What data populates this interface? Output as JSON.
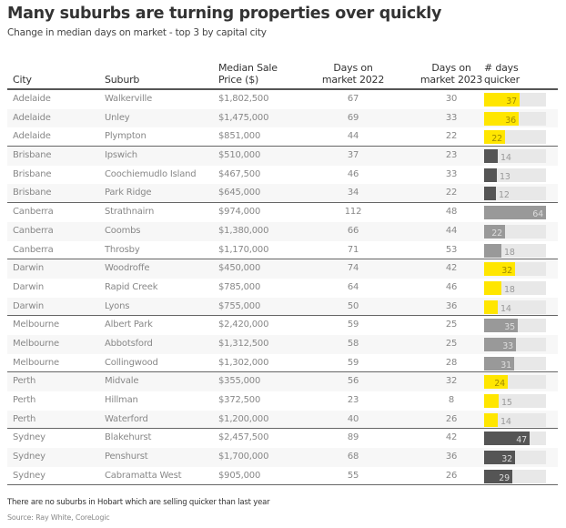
{
  "title": "Many suburbs are turning properties over quickly",
  "subtitle": "Change in median days on market - top 3 by capital city",
  "note": "There are no suburbs in Hobart which are selling quicker than last year",
  "source": "Source: Ray White, CoreLogic",
  "colors": {
    "highlight": "#ffe600",
    "dark": "#555555",
    "medium": "#999999",
    "track": "#e8e8e8"
  },
  "chart_data": {
    "type": "table",
    "title": "Many suburbs are turning properties over quickly",
    "subtitle": "Change in median days on market - top 3 by capital city",
    "columns": [
      "City",
      "Suburb",
      "Median Sale Price ($)",
      "Days on market 2022",
      "Days on market 2023",
      "# days quicker"
    ],
    "header_lines": {
      "city": [
        "City"
      ],
      "suburb": [
        "Suburb"
      ],
      "price": [
        "Median Sale",
        "Price ($)"
      ],
      "d22": [
        "Days on",
        "market 2022"
      ],
      "d23": [
        "Days on",
        "market 2023"
      ],
      "quicker": [
        "# days",
        "quicker"
      ]
    },
    "bar_max": 64,
    "rows": [
      {
        "city": "Adelaide",
        "suburb": "Walkerville",
        "price": "$1,802,500",
        "d22": 67,
        "d23": 30,
        "quicker": 37,
        "color": "highlight"
      },
      {
        "city": "Adelaide",
        "suburb": "Unley",
        "price": "$1,475,000",
        "d22": 69,
        "d23": 33,
        "quicker": 36,
        "color": "highlight"
      },
      {
        "city": "Adelaide",
        "suburb": "Plympton",
        "price": "$851,000",
        "d22": 44,
        "d23": 22,
        "quicker": 22,
        "color": "highlight"
      },
      {
        "city": "Brisbane",
        "suburb": "Ipswich",
        "price": "$510,000",
        "d22": 37,
        "d23": 23,
        "quicker": 14,
        "color": "dark"
      },
      {
        "city": "Brisbane",
        "suburb": "Coochiemudlo Island",
        "price": "$467,500",
        "d22": 46,
        "d23": 33,
        "quicker": 13,
        "color": "dark"
      },
      {
        "city": "Brisbane",
        "suburb": "Park Ridge",
        "price": "$645,000",
        "d22": 34,
        "d23": 22,
        "quicker": 12,
        "color": "dark"
      },
      {
        "city": "Canberra",
        "suburb": "Strathnairn",
        "price": "$974,000",
        "d22": 112,
        "d23": 48,
        "quicker": 64,
        "color": "medium"
      },
      {
        "city": "Canberra",
        "suburb": "Coombs",
        "price": "$1,380,000",
        "d22": 66,
        "d23": 44,
        "quicker": 22,
        "color": "medium"
      },
      {
        "city": "Canberra",
        "suburb": "Throsby",
        "price": "$1,170,000",
        "d22": 71,
        "d23": 53,
        "quicker": 18,
        "color": "medium"
      },
      {
        "city": "Darwin",
        "suburb": "Woodroffe",
        "price": "$450,000",
        "d22": 74,
        "d23": 42,
        "quicker": 32,
        "color": "highlight"
      },
      {
        "city": "Darwin",
        "suburb": "Rapid Creek",
        "price": "$785,000",
        "d22": 64,
        "d23": 46,
        "quicker": 18,
        "color": "highlight"
      },
      {
        "city": "Darwin",
        "suburb": "Lyons",
        "price": "$755,000",
        "d22": 50,
        "d23": 36,
        "quicker": 14,
        "color": "highlight"
      },
      {
        "city": "Melbourne",
        "suburb": "Albert Park",
        "price": "$2,420,000",
        "d22": 59,
        "d23": 25,
        "quicker": 35,
        "color": "medium"
      },
      {
        "city": "Melbourne",
        "suburb": "Abbotsford",
        "price": "$1,312,500",
        "d22": 58,
        "d23": 25,
        "quicker": 33,
        "color": "medium"
      },
      {
        "city": "Melbourne",
        "suburb": "Collingwood",
        "price": "$1,302,000",
        "d22": 59,
        "d23": 28,
        "quicker": 31,
        "color": "medium"
      },
      {
        "city": "Perth",
        "suburb": "Midvale",
        "price": "$355,000",
        "d22": 56,
        "d23": 32,
        "quicker": 24,
        "color": "highlight"
      },
      {
        "city": "Perth",
        "suburb": "Hillman",
        "price": "$372,500",
        "d22": 23,
        "d23": 8,
        "quicker": 15,
        "color": "highlight"
      },
      {
        "city": "Perth",
        "suburb": "Waterford",
        "price": "$1,200,000",
        "d22": 40,
        "d23": 26,
        "quicker": 14,
        "color": "highlight"
      },
      {
        "city": "Sydney",
        "suburb": "Blakehurst",
        "price": "$2,457,500",
        "d22": 89,
        "d23": 42,
        "quicker": 47,
        "color": "dark"
      },
      {
        "city": "Sydney",
        "suburb": "Penshurst",
        "price": "$1,700,000",
        "d22": 68,
        "d23": 36,
        "quicker": 32,
        "color": "dark"
      },
      {
        "city": "Sydney",
        "suburb": "Cabramatta West",
        "price": "$905,000",
        "d22": 55,
        "d23": 26,
        "quicker": 29,
        "color": "dark"
      }
    ]
  }
}
